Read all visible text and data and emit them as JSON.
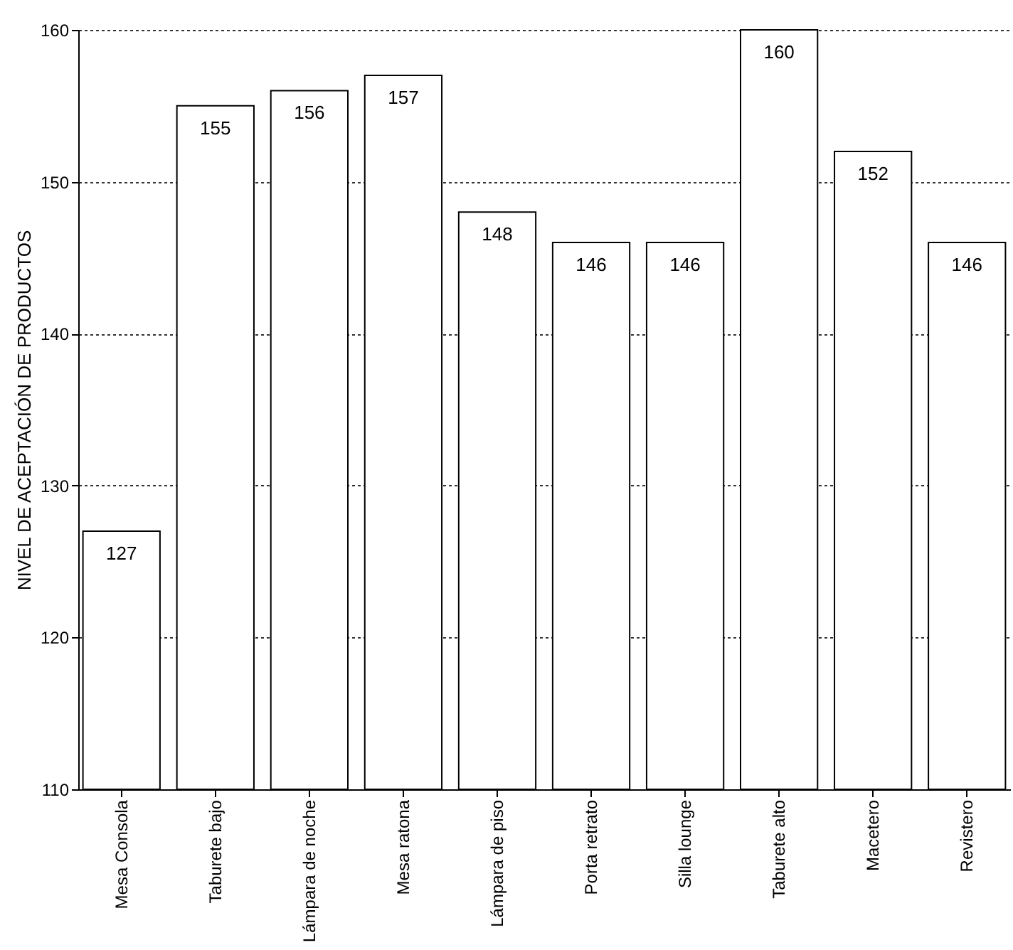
{
  "chart_data": {
    "type": "bar",
    "ylabel": "NIVEL DE ACEPTACIÓN DE PRODUCTOS",
    "categories": [
      "Mesa Consola",
      "Taburete bajo",
      "Lámpara de noche",
      "Mesa ratona",
      "Lámpara de piso",
      "Porta retrato",
      "Silla lounge",
      "Taburete alto",
      "Macetero",
      "Revistero"
    ],
    "values": [
      127,
      155,
      156,
      157,
      148,
      146,
      146,
      160,
      152,
      146
    ],
    "color": "#ffffff",
    "ylim": [
      110,
      160
    ],
    "yticks": [
      110,
      120,
      130,
      140,
      150,
      160
    ],
    "grid": "y",
    "data_labels": true
  }
}
